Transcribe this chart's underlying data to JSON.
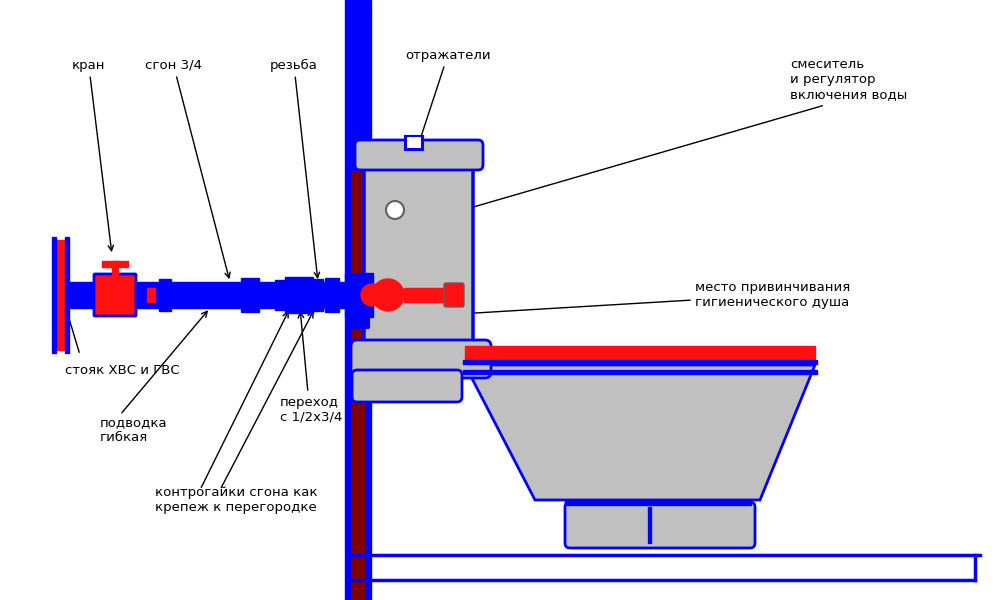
{
  "bg_color": "#ffffff",
  "blue": "#0000ff",
  "dark_red": "#800000",
  "red": "#ff1111",
  "gray": "#c0c0c0",
  "labels": {
    "kran": "кран",
    "sgon": "сгон 3/4",
    "rezba": "резьба",
    "otrazhatel": "отражатели",
    "smes": "смеситель\nи регулятор\nвключения воды",
    "mesto": "место привинчивания\nгигиенического душа",
    "stoyk": "стояк ХВС и ГВС",
    "podvodka": "подводка\nгибкая",
    "kontro": "контрогайки сгона как\nкрепеж к перегородке",
    "perekhod": "переход\nс 1/2х3/4"
  }
}
